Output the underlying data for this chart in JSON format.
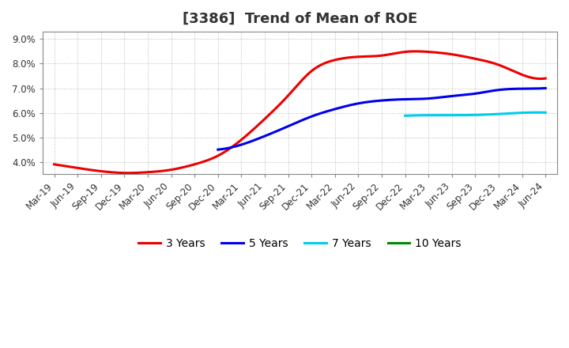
{
  "title": "[3386]  Trend of Mean of ROE",
  "ylim": [
    0.035,
    0.093
  ],
  "yticks": [
    0.04,
    0.05,
    0.06,
    0.07,
    0.08,
    0.09
  ],
  "ytick_labels": [
    "4.0%",
    "5.0%",
    "6.0%",
    "7.0%",
    "8.0%",
    "9.0%"
  ],
  "x_labels": [
    "Mar-19",
    "Jun-19",
    "Sep-19",
    "Dec-19",
    "Mar-20",
    "Jun-20",
    "Sep-20",
    "Dec-20",
    "Mar-21",
    "Jun-21",
    "Sep-21",
    "Dec-21",
    "Mar-22",
    "Jun-22",
    "Sep-22",
    "Dec-22",
    "Mar-23",
    "Jun-23",
    "Sep-23",
    "Dec-23",
    "Mar-24",
    "Jun-24"
  ],
  "series_3y": {
    "label": "3 Years",
    "color": "#EE0000",
    "x": [
      0,
      1,
      2,
      3,
      4,
      5,
      6,
      7,
      8,
      9,
      10,
      11,
      12,
      13,
      14,
      15,
      16,
      17,
      18,
      19,
      20,
      21
    ],
    "y": [
      0.039,
      0.0375,
      0.0362,
      0.0355,
      0.0358,
      0.0368,
      0.039,
      0.0425,
      0.049,
      0.0575,
      0.067,
      0.077,
      0.0815,
      0.0828,
      0.0833,
      0.0848,
      0.0848,
      0.0838,
      0.082,
      0.0795,
      0.0755,
      0.074
    ]
  },
  "series_5y": {
    "label": "5 Years",
    "color": "#0000EE",
    "x": [
      7,
      8,
      9,
      10,
      11,
      12,
      13,
      14,
      15,
      16,
      17,
      18,
      19,
      20,
      21
    ],
    "y": [
      0.045,
      0.047,
      0.0505,
      0.0545,
      0.0585,
      0.0615,
      0.0638,
      0.065,
      0.0655,
      0.0658,
      0.0668,
      0.0678,
      0.0693,
      0.0698,
      0.07
    ]
  },
  "series_7y": {
    "label": "7 Years",
    "color": "#00CCEE",
    "x": [
      15,
      16,
      17,
      18,
      19,
      20,
      21
    ],
    "y": [
      0.0588,
      0.059,
      0.059,
      0.0591,
      0.0595,
      0.06,
      0.0601
    ]
  },
  "series_10y": {
    "label": "10 Years",
    "color": "#008800",
    "x": [],
    "y": []
  },
  "background_color": "#ffffff",
  "grid_color": "#999999",
  "title_fontsize": 13,
  "tick_fontsize": 8.5,
  "legend_fontsize": 10,
  "linewidth": 2.2
}
